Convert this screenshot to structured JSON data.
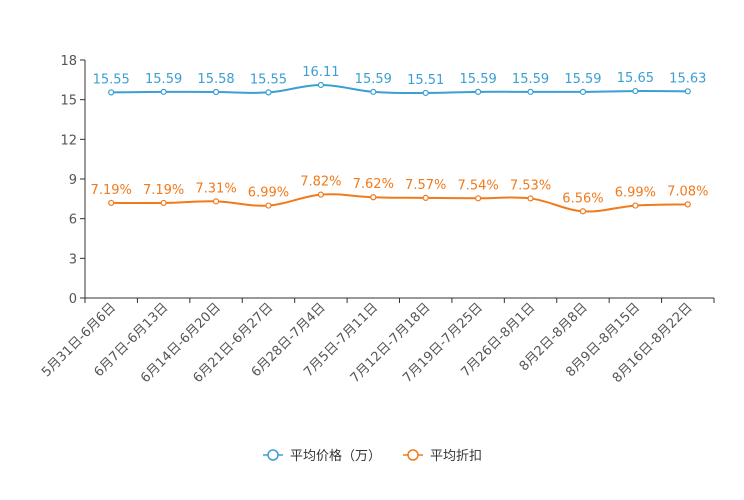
{
  "chart_data": {
    "type": "line",
    "title": "",
    "xlabel": "",
    "ylabel": "",
    "ylim": [
      0,
      18
    ],
    "yticks": [
      0,
      3,
      6,
      9,
      12,
      15,
      18
    ],
    "grid": false,
    "legend_position": "bottom-center",
    "categories": [
      "5月31日-6月6日",
      "6月7日-6月13日",
      "6月14日-6月20日",
      "6月21日-6月27日",
      "6月28日-7月4日",
      "7月5日-7月11日",
      "7月12日-7月18日",
      "7月19日-7月25日",
      "7月26日-8月1日",
      "8月2日-8月8日",
      "8月9日-8月15日",
      "8月16日-8月22日"
    ],
    "series": [
      {
        "name": "平均价格（万）",
        "color": "#3a9fd3",
        "values": [
          15.55,
          15.59,
          15.58,
          15.55,
          16.11,
          15.59,
          15.51,
          15.59,
          15.59,
          15.59,
          15.65,
          15.63
        ],
        "labels": [
          "15.55",
          "15.59",
          "15.58",
          "15.55",
          "16.11",
          "15.59",
          "15.51",
          "15.59",
          "15.59",
          "15.59",
          "15.65",
          "15.63"
        ]
      },
      {
        "name": "平均折扣",
        "color": "#f07a1c",
        "values": [
          7.19,
          7.19,
          7.31,
          6.99,
          7.82,
          7.62,
          7.57,
          7.54,
          7.53,
          6.56,
          6.99,
          7.08
        ],
        "labels": [
          "7.19%",
          "7.19%",
          "7.31%",
          "6.99%",
          "7.82%",
          "7.62%",
          "7.57%",
          "7.54%",
          "7.53%",
          "6.56%",
          "6.99%",
          "7.08%"
        ]
      }
    ]
  }
}
